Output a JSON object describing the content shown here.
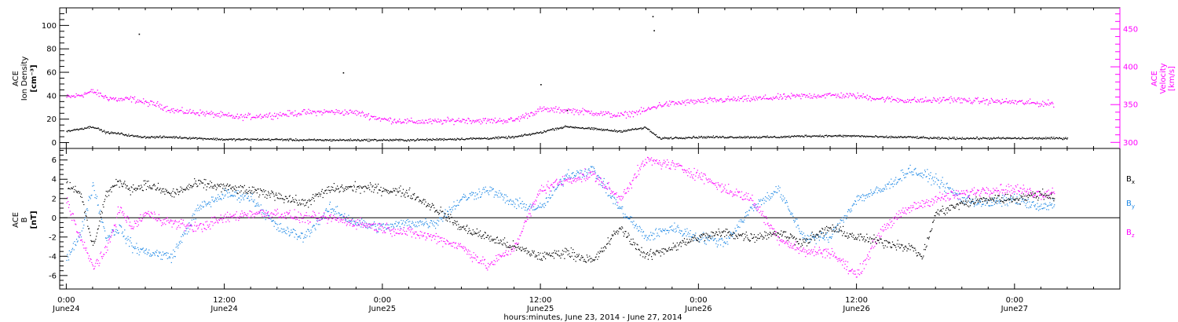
{
  "chart_data": [
    {
      "type": "scatter",
      "panel": "top",
      "x_axis": {
        "range_hours": [
          -0.5,
          80
        ],
        "tick_times": [
          "0:00",
          "12:00",
          "0:00",
          "12:00",
          "0:00",
          "12:00",
          "0:00"
        ],
        "tick_dates": [
          "June24",
          "June24",
          "June25",
          "June25",
          "June26",
          "June26",
          "June27"
        ],
        "xlabel": "hours:minutes, June 23, 2014 - June 27, 2014"
      },
      "left_axis": {
        "label_lines": [
          "ACE",
          "Ion Density"
        ],
        "unit": "[cm⁻³]",
        "range": [
          -5,
          115
        ],
        "ticks": [
          0,
          20,
          40,
          60,
          80,
          100
        ]
      },
      "right_axis": {
        "label_lines": [
          "ACE",
          "Velocity"
        ],
        "unit": "[km/s]",
        "range": [
          292,
          478
        ],
        "ticks": [
          300,
          350,
          400,
          450
        ]
      },
      "series": [
        {
          "name": "Ion Density",
          "axis": "left",
          "color": "#000000",
          "points": [
            [
              0,
              10
            ],
            [
              1,
              12
            ],
            [
              2,
              14
            ],
            [
              3,
              9
            ],
            [
              4,
              8
            ],
            [
              5,
              6
            ],
            [
              6,
              5
            ],
            [
              8,
              5
            ],
            [
              10,
              4
            ],
            [
              12,
              3
            ],
            [
              14,
              3
            ],
            [
              16,
              3
            ],
            [
              18,
              2.5
            ],
            [
              20,
              2.5
            ],
            [
              24,
              2.5
            ],
            [
              26,
              2.5
            ],
            [
              28,
              3
            ],
            [
              30,
              3.5
            ],
            [
              32,
              4
            ],
            [
              34,
              5
            ],
            [
              36,
              9
            ],
            [
              37,
              12
            ],
            [
              38,
              14
            ],
            [
              40,
              12
            ],
            [
              42,
              10
            ],
            [
              44,
              13
            ],
            [
              45,
              4
            ],
            [
              48,
              5
            ],
            [
              50,
              5
            ],
            [
              52,
              5
            ],
            [
              54,
              5
            ],
            [
              56,
              6
            ],
            [
              58,
              6
            ],
            [
              60,
              6
            ],
            [
              62,
              5
            ],
            [
              64,
              5
            ],
            [
              66,
              4
            ],
            [
              68,
              4
            ],
            [
              70,
              4
            ],
            [
              72,
              4
            ],
            [
              74,
              4
            ],
            [
              76,
              4
            ]
          ],
          "outliers": [
            [
              5.5,
              93
            ],
            [
              21,
              60
            ],
            [
              36,
              50
            ],
            [
              38,
              28
            ],
            [
              44.5,
              108
            ],
            [
              44.6,
              96
            ]
          ]
        },
        {
          "name": "Velocity",
          "axis": "right",
          "color": "#ff00ff",
          "points": [
            [
              0,
              360
            ],
            [
              1,
              363
            ],
            [
              2,
              368
            ],
            [
              3,
              360
            ],
            [
              4,
              357
            ],
            [
              5,
              358
            ],
            [
              6,
              353
            ],
            [
              7,
              350
            ],
            [
              8,
              343
            ],
            [
              9,
              341
            ],
            [
              10,
              340
            ],
            [
              11,
              338
            ],
            [
              12,
              336
            ],
            [
              13,
              334
            ],
            [
              14,
              335
            ],
            [
              16,
              337
            ],
            [
              18,
              340
            ],
            [
              20,
              341
            ],
            [
              22,
              340
            ],
            [
              24,
              331
            ],
            [
              26,
              328
            ],
            [
              28,
              328
            ],
            [
              30,
              330
            ],
            [
              32,
              329
            ],
            [
              34,
              330
            ],
            [
              36,
              344
            ],
            [
              38,
              343
            ],
            [
              40,
              340
            ],
            [
              42,
              336
            ],
            [
              44,
              343
            ],
            [
              45,
              350
            ],
            [
              46,
              352
            ],
            [
              48,
              355
            ],
            [
              50,
              357
            ],
            [
              52,
              358
            ],
            [
              54,
              360
            ],
            [
              56,
              362
            ],
            [
              58,
              363
            ],
            [
              60,
              362
            ],
            [
              62,
              358
            ],
            [
              64,
              356
            ],
            [
              66,
              356
            ],
            [
              67,
              358
            ],
            [
              68,
              356
            ],
            [
              70,
              355
            ],
            [
              72,
              354
            ],
            [
              74,
              352
            ],
            [
              75,
              352
            ]
          ]
        }
      ]
    },
    {
      "type": "scatter",
      "panel": "bottom",
      "left_axis": {
        "label_lines": [
          "ACE",
          "B"
        ],
        "unit": "[nT]",
        "range": [
          -7.4,
          7.2
        ],
        "ticks": [
          -6,
          -4,
          -2,
          0,
          2,
          4,
          6
        ]
      },
      "legend": [
        "Bx",
        "By",
        "Bz"
      ],
      "series": [
        {
          "name": "Bx",
          "color": "#000000",
          "points": [
            [
              0,
              3.5
            ],
            [
              1,
              2.8
            ],
            [
              2,
              -3.0
            ],
            [
              3,
              2.5
            ],
            [
              4,
              3.8
            ],
            [
              5,
              3.0
            ],
            [
              6,
              3.5
            ],
            [
              8,
              2.5
            ],
            [
              10,
              3.6
            ],
            [
              12,
              3.2
            ],
            [
              14,
              2.8
            ],
            [
              16,
              2.4
            ],
            [
              18,
              1.5
            ],
            [
              20,
              3.0
            ],
            [
              22,
              3.2
            ],
            [
              24,
              3.0
            ],
            [
              26,
              2.6
            ],
            [
              28,
              1.0
            ],
            [
              30,
              -1.0
            ],
            [
              32,
              -2.0
            ],
            [
              34,
              -3.0
            ],
            [
              36,
              -4.0
            ],
            [
              38,
              -3.5
            ],
            [
              40,
              -4.5
            ],
            [
              42,
              -1.0
            ],
            [
              44,
              -4.0
            ],
            [
              46,
              -3.0
            ],
            [
              48,
              -2.0
            ],
            [
              50,
              -1.5
            ],
            [
              52,
              -2.0
            ],
            [
              54,
              -1.5
            ],
            [
              56,
              -2.5
            ],
            [
              58,
              -1.0
            ],
            [
              60,
              -2.0
            ],
            [
              62,
              -2.5
            ],
            [
              64,
              -3.0
            ],
            [
              65,
              -4.0
            ],
            [
              66,
              0.5
            ],
            [
              68,
              1.5
            ],
            [
              70,
              2.0
            ],
            [
              72,
              2.0
            ],
            [
              74,
              2.5
            ],
            [
              75,
              2.2
            ]
          ]
        },
        {
          "name": "By",
          "color": "#1e88e5",
          "points": [
            [
              0,
              -4.0
            ],
            [
              1,
              -2.0
            ],
            [
              2,
              3.5
            ],
            [
              3,
              -2.0
            ],
            [
              4,
              -1.0
            ],
            [
              5,
              -3.0
            ],
            [
              6,
              -3.5
            ],
            [
              8,
              -4.0
            ],
            [
              10,
              1.0
            ],
            [
              12,
              2.5
            ],
            [
              14,
              2.2
            ],
            [
              16,
              -1.0
            ],
            [
              18,
              -2.0
            ],
            [
              20,
              1.0
            ],
            [
              22,
              -0.5
            ],
            [
              24,
              -1.0
            ],
            [
              26,
              -0.5
            ],
            [
              28,
              -0.5
            ],
            [
              30,
              2.0
            ],
            [
              32,
              3.0
            ],
            [
              34,
              1.5
            ],
            [
              36,
              1.0
            ],
            [
              38,
              4.5
            ],
            [
              40,
              5.0
            ],
            [
              42,
              1.0
            ],
            [
              44,
              -2.0
            ],
            [
              46,
              -1.0
            ],
            [
              48,
              -2.0
            ],
            [
              50,
              -2.5
            ],
            [
              52,
              1.0
            ],
            [
              54,
              3.0
            ],
            [
              56,
              -2.0
            ],
            [
              58,
              -2.0
            ],
            [
              60,
              2.0
            ],
            [
              62,
              3.0
            ],
            [
              64,
              5.0
            ],
            [
              66,
              4.0
            ],
            [
              68,
              2.0
            ],
            [
              70,
              1.5
            ],
            [
              72,
              2.0
            ],
            [
              74,
              1.0
            ],
            [
              75,
              1.5
            ]
          ]
        },
        {
          "name": "Bz",
          "color": "#ff00ff",
          "points": [
            [
              0,
              2.0
            ],
            [
              1,
              -2.0
            ],
            [
              2,
              -5.0
            ],
            [
              3,
              -3.5
            ],
            [
              4,
              1.0
            ],
            [
              5,
              -1.0
            ],
            [
              6,
              0.5
            ],
            [
              8,
              -0.5
            ],
            [
              10,
              -1.0
            ],
            [
              12,
              0
            ],
            [
              14,
              0.5
            ],
            [
              16,
              0.5
            ],
            [
              18,
              0
            ],
            [
              20,
              0
            ],
            [
              22,
              -0.5
            ],
            [
              24,
              -1.0
            ],
            [
              26,
              -1.5
            ],
            [
              28,
              -2.0
            ],
            [
              30,
              -3.0
            ],
            [
              32,
              -5.0
            ],
            [
              34,
              -3.0
            ],
            [
              36,
              3.0
            ],
            [
              38,
              4.0
            ],
            [
              40,
              4.5
            ],
            [
              42,
              2.0
            ],
            [
              44,
              6.0
            ],
            [
              46,
              5.5
            ],
            [
              48,
              4.5
            ],
            [
              50,
              3.0
            ],
            [
              52,
              2.0
            ],
            [
              54,
              -2.0
            ],
            [
              56,
              -3.5
            ],
            [
              58,
              -3.5
            ],
            [
              60,
              -6.0
            ],
            [
              62,
              -1.0
            ],
            [
              64,
              1.0
            ],
            [
              66,
              2.0
            ],
            [
              68,
              2.5
            ],
            [
              70,
              3.0
            ],
            [
              72,
              3.0
            ],
            [
              74,
              2.5
            ],
            [
              75,
              2.8
            ]
          ]
        }
      ]
    }
  ]
}
